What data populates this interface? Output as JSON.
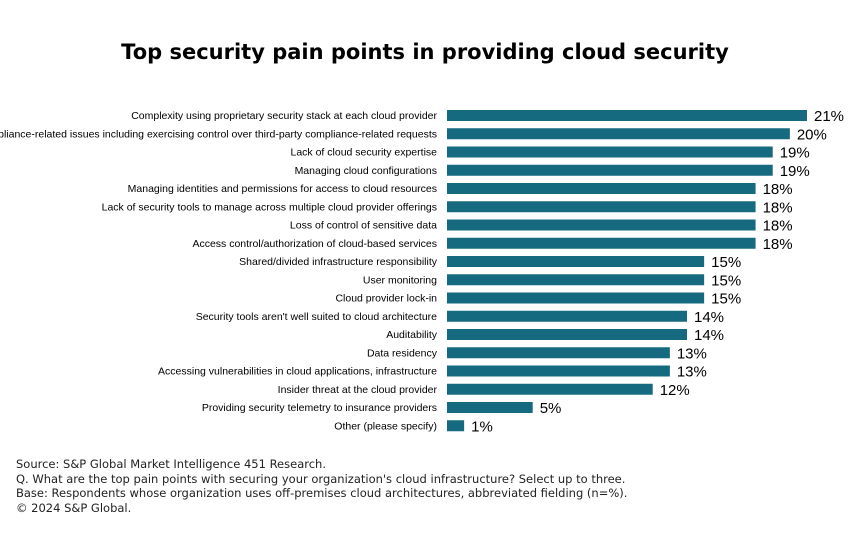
{
  "chart_data": {
    "type": "bar",
    "orientation": "horizontal",
    "title": "Top security pain points in providing cloud security",
    "categories": [
      "Complexity using proprietary security stack at each cloud provider",
      "Compliance-related issues including exercising control over third-party compliance-related requests",
      "Lack of cloud security expertise",
      "Managing cloud configurations",
      "Managing identities and permissions for access to cloud resources",
      "Lack of security tools to manage across multiple cloud provider offerings",
      "Loss of control of sensitive data",
      "Access control/authorization of cloud-based services",
      "Shared/divided infrastructure responsibility",
      "User monitoring",
      "Cloud provider lock-in",
      "Security tools aren't well suited to cloud architecture",
      "Auditability",
      "Data residency",
      "Accessing vulnerabilities in cloud applications, infrastructure",
      "Insider threat at the cloud provider",
      "Providing security telemetry to insurance providers",
      "Other (please specify)"
    ],
    "values": [
      21,
      20,
      19,
      19,
      18,
      18,
      18,
      18,
      15,
      15,
      15,
      14,
      14,
      13,
      13,
      12,
      5,
      1
    ],
    "value_labels": [
      "21%",
      "20%",
      "19%",
      "19%",
      "18%",
      "18%",
      "18%",
      "18%",
      "15%",
      "15%",
      "15%",
      "14%",
      "14%",
      "13%",
      "13%",
      "12%",
      "5%",
      "1%"
    ],
    "xlim": [
      0,
      21
    ],
    "bar_color": "#166a7f",
    "grid": false,
    "legend": "none"
  },
  "footer": {
    "source": "Source: S&P Global Market Intelligence 451 Research.",
    "question": "Q. What are the top pain points with securing your organization's cloud infrastructure? Select up to three.",
    "base": "Base: Respondents whose organization uses off-premises cloud architectures, abbreviated fielding (n=%).",
    "copyright": "© 2024 S&P Global."
  }
}
